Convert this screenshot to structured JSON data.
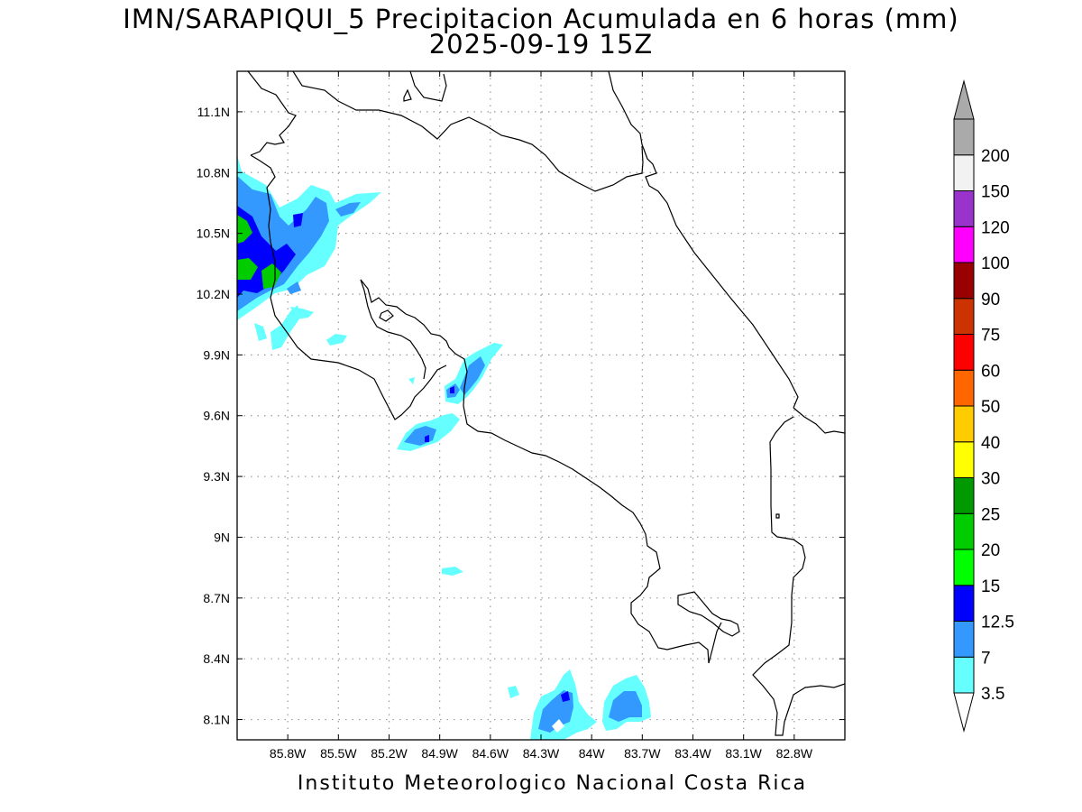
{
  "title": "IMN/SARAPIQUI_5 Precipitacion Acumulada en 6 horas (mm)",
  "subtitle": "2025-09-19 15Z",
  "credit": "Instituto Meteorologico Nacional Costa Rica",
  "map": {
    "projection": "lat-lon",
    "lon_range": [
      -86.1,
      -82.5
    ],
    "lat_range": [
      8.0,
      11.3
    ],
    "grid": "dotted",
    "x_ticks": [
      "85.8W",
      "85.5W",
      "85.2W",
      "84.9W",
      "84.6W",
      "84.3W",
      "84W",
      "83.7W",
      "83.4W",
      "83.1W",
      "82.8W"
    ],
    "x_tick_values": [
      -85.8,
      -85.5,
      -85.2,
      -84.9,
      -84.6,
      -84.3,
      -84.0,
      -83.7,
      -83.4,
      -83.1,
      -82.8
    ],
    "y_ticks": [
      "8.1N",
      "8.4N",
      "8.7N",
      "9N",
      "9.3N",
      "9.6N",
      "9.9N",
      "10.2N",
      "10.5N",
      "10.8N",
      "11.1N"
    ],
    "y_tick_values": [
      8.1,
      8.4,
      8.7,
      9.0,
      9.3,
      9.6,
      9.9,
      10.2,
      10.5,
      10.8,
      11.1
    ]
  },
  "colorbar": {
    "labels": [
      "3.5",
      "7",
      "12.5",
      "15",
      "20",
      "25",
      "30",
      "40",
      "50",
      "60",
      "75",
      "90",
      "100",
      "120",
      "150",
      "200"
    ],
    "colors": [
      "#66ffff",
      "#3399ff",
      "#0000ff",
      "#00ff00",
      "#00cc00",
      "#009900",
      "#ffff00",
      "#ffcc00",
      "#ff6600",
      "#ff0000",
      "#cc3300",
      "#990000",
      "#ff00ff",
      "#9933cc",
      "#f2f2f2",
      "#aaaaaa"
    ],
    "lower_arrow_color": "#ffffff",
    "upper_arrow_color": "#aaaaaa"
  },
  "precip_areas": [
    {
      "name": "northwest-pacific-cluster",
      "lon": -86.0,
      "lat": 10.45,
      "max_level": "25"
    },
    {
      "name": "nicoya-gulf-cells",
      "lon": -84.85,
      "lat": 9.65,
      "max_level": "12.5"
    },
    {
      "name": "south-pacific-cells",
      "lon": -83.9,
      "lat": 8.15,
      "max_level": "12.5"
    }
  ]
}
